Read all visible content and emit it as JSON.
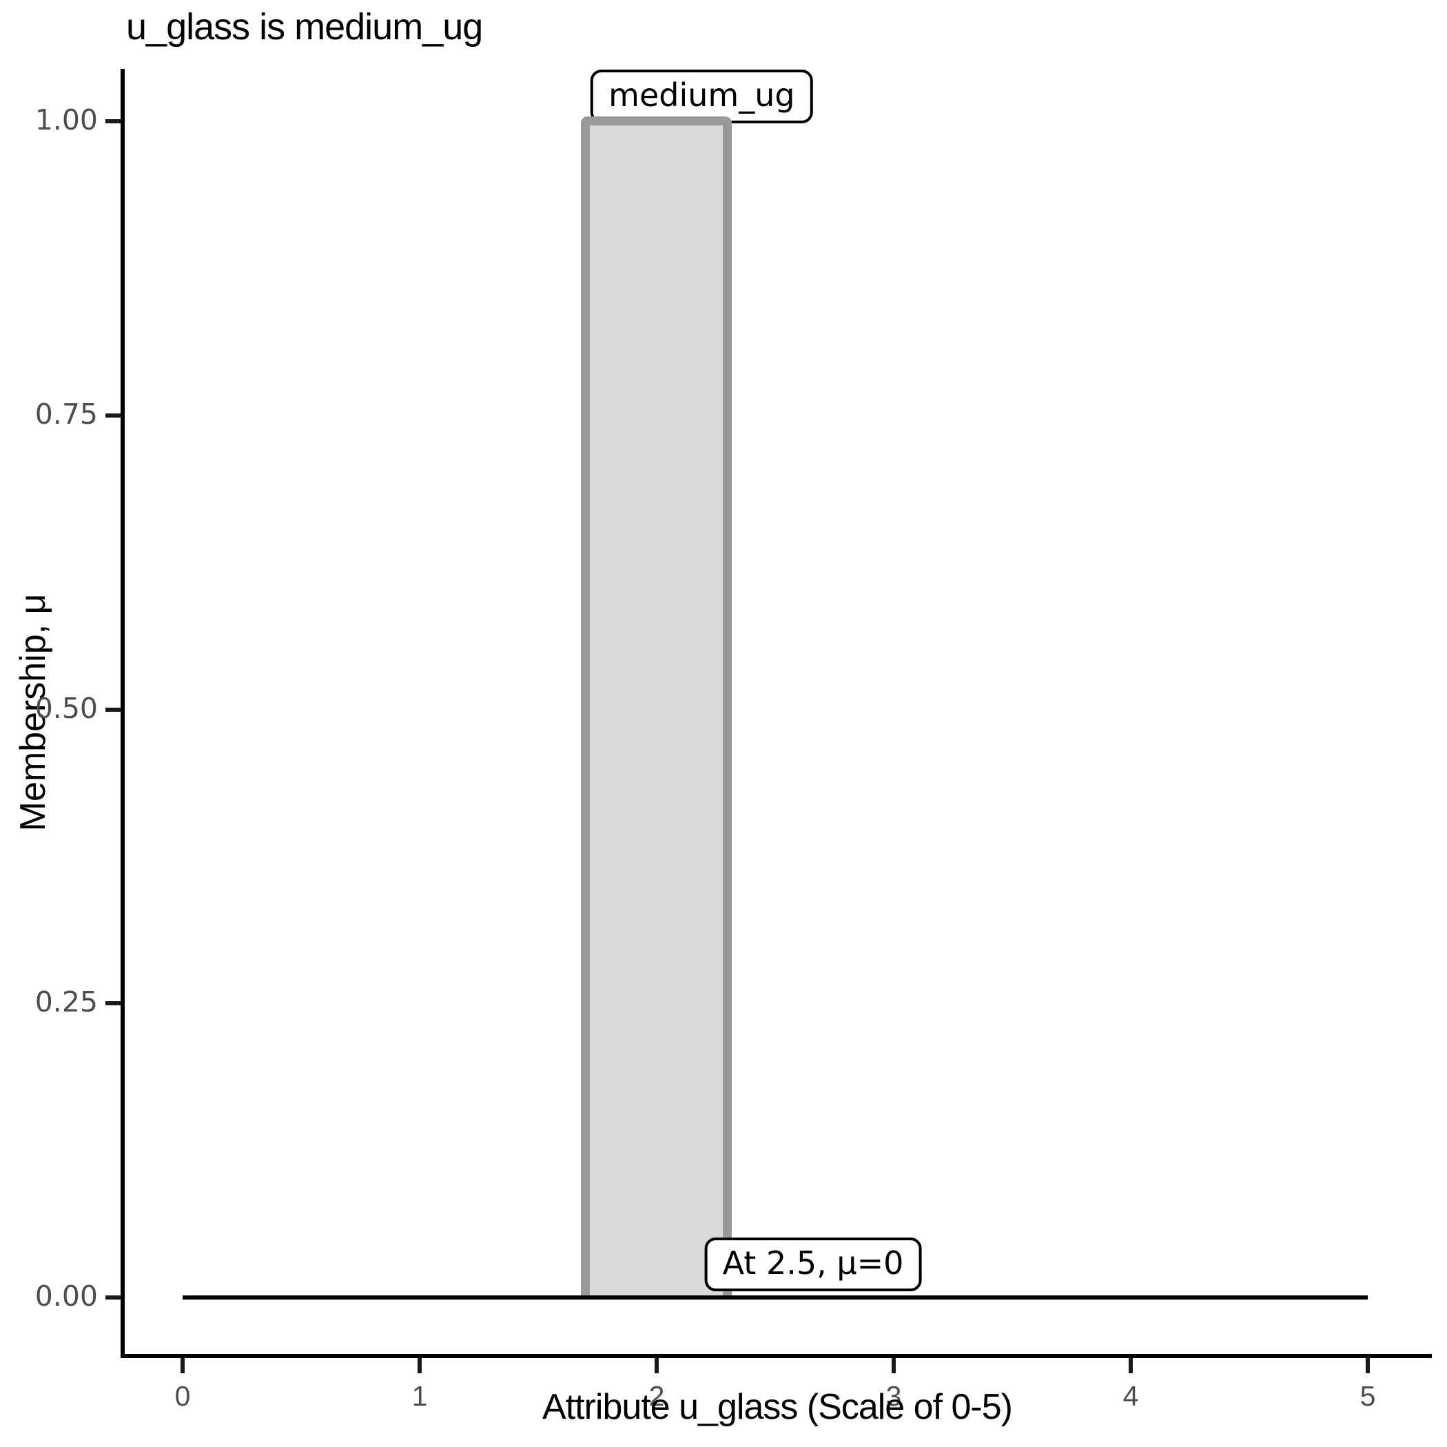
{
  "chart_data": {
    "type": "area",
    "title": "u_glass is medium_ug",
    "xlabel": "Attribute u_glass (Scale of 0-5)",
    "ylabel": "Membership, μ",
    "xlim": [
      0,
      5
    ],
    "ylim": [
      0,
      1
    ],
    "grid": "off",
    "legend": "none",
    "x_ticks": [
      {
        "label": "0",
        "value": 0
      },
      {
        "label": "1",
        "value": 1
      },
      {
        "label": "2",
        "value": 2
      },
      {
        "label": "3",
        "value": 3
      },
      {
        "label": "4",
        "value": 4
      },
      {
        "label": "5",
        "value": 5
      }
    ],
    "y_ticks": [
      {
        "label": "1.00",
        "value": 1.0
      },
      {
        "label": "0.75",
        "value": 0.75
      },
      {
        "label": "0.50",
        "value": 0.5
      },
      {
        "label": "0.25",
        "value": 0.25
      },
      {
        "label": "0.00",
        "value": 0.0
      }
    ],
    "series": [
      {
        "name": "medium_ug",
        "kind": "membership-rect",
        "points": [
          [
            0,
            0
          ],
          [
            1.7,
            0
          ],
          [
            1.7,
            1.0
          ],
          [
            2.3,
            1.0
          ],
          [
            2.3,
            0
          ],
          [
            5,
            0
          ]
        ],
        "x_start": 1.7,
        "x_end": 2.3,
        "mu_max": 1.0,
        "fill": "#d9d9d9",
        "stroke": "#999999",
        "stroke_width": 13
      },
      {
        "name": "zero-baseline",
        "kind": "line",
        "points": [
          [
            0,
            0
          ],
          [
            5,
            0
          ]
        ],
        "color": "#000000",
        "stroke_width": 6
      }
    ],
    "annotations": [
      {
        "text": "medium_ug",
        "x": 2.19,
        "y": 1.0,
        "anchor": "bottom"
      },
      {
        "text": "At 2.5, μ=0",
        "x": 2.66,
        "y": 0.028,
        "anchor": "center"
      }
    ],
    "colors": {
      "axis": "#000000",
      "tick_label": "#4d4d4d",
      "bar_fill": "#d9d9d9",
      "bar_stroke": "#999999",
      "annotation_border": "#000000",
      "background": "#ffffff"
    }
  }
}
